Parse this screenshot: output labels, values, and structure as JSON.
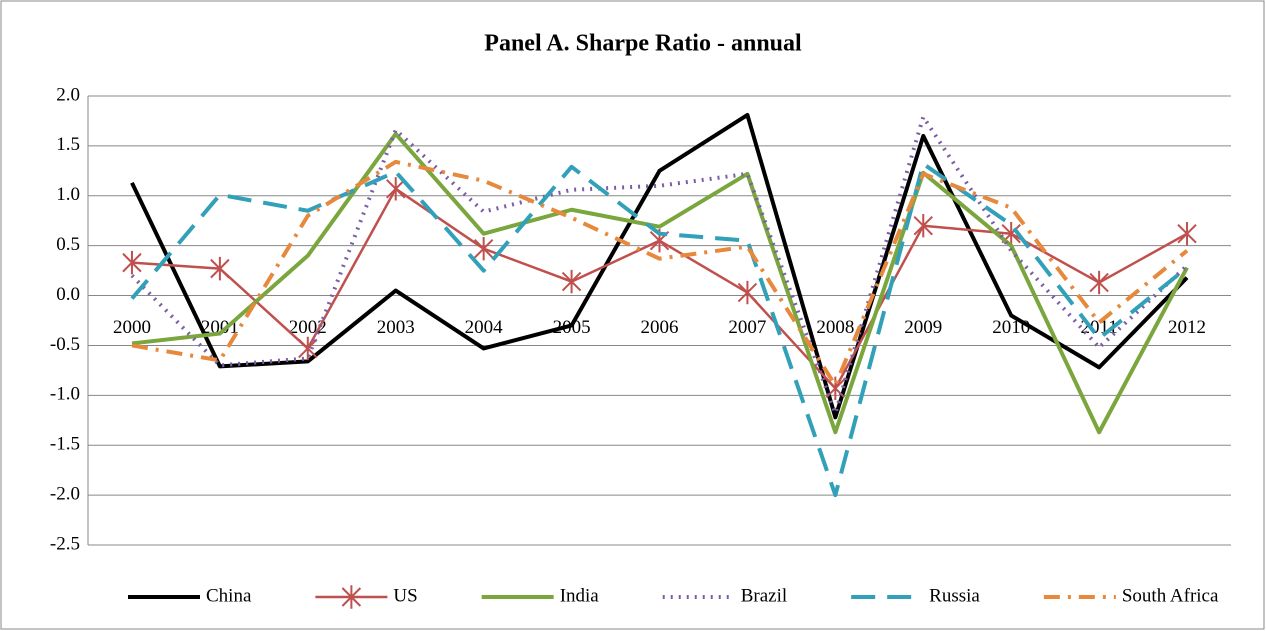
{
  "chart_data": {
    "type": "line",
    "title": "Panel A. Sharpe Ratio - annual",
    "categories": [
      "2000",
      "2001",
      "2002",
      "2003",
      "2004",
      "2005",
      "2006",
      "2007",
      "2008",
      "2009",
      "2010",
      "2011",
      "2012"
    ],
    "ylim": [
      -2.5,
      2.0
    ],
    "yticks": [
      {
        "value": -2.5,
        "label": "-2.5"
      },
      {
        "value": -2,
        "label": "-2.0"
      },
      {
        "value": -1.5,
        "label": "-1.5"
      },
      {
        "value": -1,
        "label": "-1.0"
      },
      {
        "value": -0.5,
        "label": "-0.5"
      },
      {
        "value": 0,
        "label": "0.0"
      },
      0.5,
      {
        "value": 1,
        "label": "1.0"
      },
      1.5,
      {
        "value": 2,
        "label": "2.0"
      }
    ],
    "grid": true,
    "legend": "bottom",
    "series": [
      {
        "name": "China",
        "color": "#000000",
        "dash": "solid",
        "values": [
          1.13,
          -0.71,
          -0.66,
          0.05,
          -0.53,
          -0.3,
          1.25,
          1.81,
          -1.22,
          1.6,
          -0.2,
          -0.72,
          0.18
        ]
      },
      {
        "name": "US",
        "color": "#c0504d",
        "dash": "solid",
        "marker": "star",
        "values": [
          0.33,
          0.27,
          -0.53,
          1.07,
          0.47,
          0.14,
          0.55,
          0.03,
          -0.93,
          0.7,
          0.62,
          0.13,
          0.62
        ]
      },
      {
        "name": "India",
        "color": "#7aa63d",
        "dash": "solid",
        "values": [
          -0.48,
          -0.38,
          0.4,
          1.62,
          0.62,
          0.86,
          0.69,
          1.22,
          -1.37,
          1.23,
          0.5,
          -1.37,
          0.28
        ]
      },
      {
        "name": "Brazil",
        "color": "#7b5ea7",
        "dash": "dotted",
        "values": [
          0.2,
          -0.7,
          -0.63,
          1.66,
          0.84,
          1.06,
          1.1,
          1.22,
          -1.18,
          1.79,
          0.45,
          -0.52,
          0.3
        ]
      },
      {
        "name": "Russia",
        "color": "#31a0b8",
        "dash": "dashed",
        "values": [
          -0.03,
          1.01,
          0.85,
          1.24,
          0.25,
          1.29,
          0.62,
          0.55,
          -2.0,
          1.32,
          0.71,
          -0.43,
          0.28
        ]
      },
      {
        "name": "South Africa",
        "color": "#e6893d",
        "dash": "dash-dot",
        "values": [
          -0.5,
          -0.65,
          0.8,
          1.34,
          1.15,
          0.78,
          0.37,
          0.49,
          -0.9,
          1.22,
          0.88,
          -0.27,
          0.45
        ]
      }
    ]
  }
}
